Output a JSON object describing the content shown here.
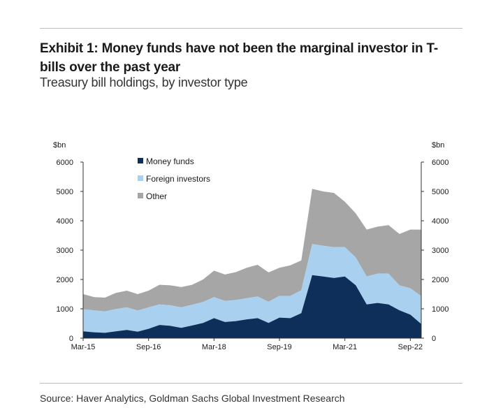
{
  "header_fragment": "",
  "title": "Exhibit 1: Money funds have not been the marginal investor in T-bills over the past year",
  "subtitle": "Treasury bill holdings, by investor type",
  "source": "Source: Haver Analytics, Goldman Sachs Global Investment Research",
  "colors": {
    "money_funds": "#0d2f5a",
    "foreign_investors": "#a9d1ef",
    "other": "#a6a6a6"
  },
  "chart_data": {
    "type": "area",
    "stacked": true,
    "x_tick_labels": [
      "Mar-15",
      "Sep-16",
      "Mar-18",
      "Sep-19",
      "Mar-21",
      "Sep-22"
    ],
    "y_left_unit": "$bn",
    "y_right_unit": "$bn",
    "y_ticks": [
      0,
      1000,
      2000,
      3000,
      4000,
      5000,
      6000
    ],
    "ylim": [
      0,
      6000
    ],
    "legend": [
      "Money funds",
      "Foreign investors",
      "Other"
    ],
    "legend_position": "top-left",
    "grid": false,
    "x": [
      "Q1-15",
      "Q2-15",
      "Q3-15",
      "Q4-15",
      "Q1-16",
      "Q2-16",
      "Q3-16",
      "Q4-16",
      "Q1-17",
      "Q2-17",
      "Q3-17",
      "Q4-17",
      "Q1-18",
      "Q2-18",
      "Q3-18",
      "Q4-18",
      "Q1-19",
      "Q2-19",
      "Q3-19",
      "Q4-19",
      "Q1-20",
      "Q2-20",
      "Q3-20",
      "Q4-20",
      "Q1-21",
      "Q2-21",
      "Q3-21",
      "Q4-21",
      "Q1-22",
      "Q2-22",
      "Q3-22",
      "Q4-22"
    ],
    "series": [
      {
        "name": "Money funds",
        "values": [
          230,
          200,
          180,
          230,
          280,
          220,
          320,
          450,
          420,
          350,
          430,
          520,
          680,
          550,
          580,
          640,
          680,
          520,
          700,
          680,
          850,
          2150,
          2100,
          2050,
          2100,
          1800,
          1150,
          1200,
          1150,
          950,
          800,
          480
        ]
      },
      {
        "name": "Foreign investors",
        "values": [
          750,
          750,
          730,
          760,
          770,
          720,
          730,
          700,
          700,
          700,
          710,
          710,
          720,
          720,
          720,
          720,
          740,
          720,
          740,
          760,
          780,
          1060,
          1050,
          1050,
          1000,
          950,
          950,
          1000,
          1050,
          850,
          900,
          950
        ]
      },
      {
        "name": "Other",
        "values": [
          520,
          450,
          470,
          550,
          570,
          560,
          570,
          670,
          680,
          690,
          680,
          770,
          900,
          900,
          950,
          1040,
          1080,
          1000,
          960,
          1040,
          1020,
          1880,
          1850,
          1850,
          1550,
          1500,
          1600,
          1600,
          1650,
          1750,
          2000,
          2270
        ]
      }
    ]
  }
}
